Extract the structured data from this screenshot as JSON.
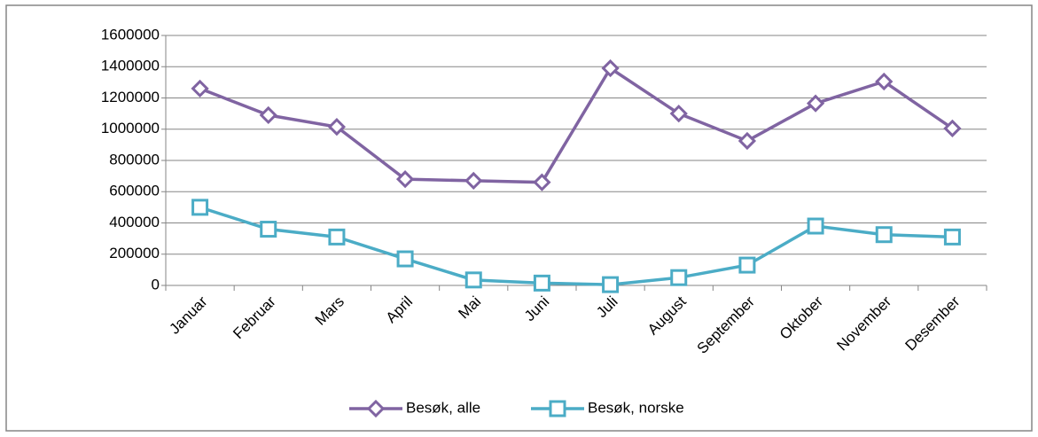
{
  "chart_data": {
    "type": "line",
    "categories": [
      "Januar",
      "Februar",
      "Mars",
      "April",
      "Mai",
      "Juni",
      "Juli",
      "August",
      "September",
      "Oktober",
      "November",
      "Desember"
    ],
    "series": [
      {
        "name": "Besøk, alle",
        "color": "#8064a2",
        "marker": "diamond",
        "values": [
          1260000,
          1090000,
          1015000,
          680000,
          670000,
          660000,
          1390000,
          1100000,
          925000,
          1165000,
          1305000,
          1005000
        ]
      },
      {
        "name": "Besøk, norske",
        "color": "#4bacc6",
        "marker": "square",
        "values": [
          500000,
          360000,
          310000,
          170000,
          35000,
          15000,
          5000,
          50000,
          130000,
          380000,
          325000,
          310000
        ]
      }
    ],
    "ylim": [
      0,
      1600000
    ],
    "yticks": [
      0,
      200000,
      400000,
      600000,
      800000,
      1000000,
      1200000,
      1400000,
      1600000
    ],
    "grid": true,
    "legend": "bottom"
  }
}
